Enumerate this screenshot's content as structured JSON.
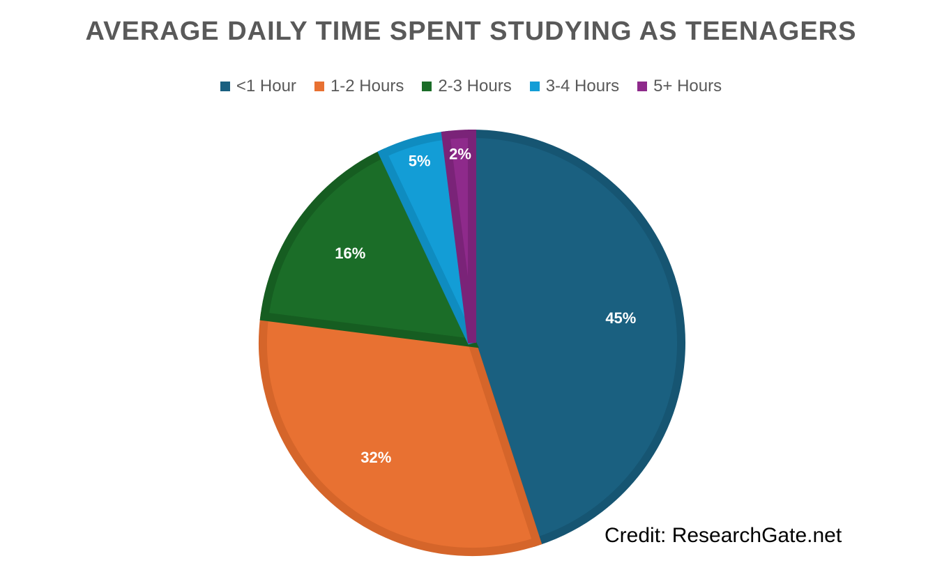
{
  "chart_data": {
    "type": "pie",
    "title": "AVERAGE DAILY TIME SPENT STUDYING AS TEENAGERS",
    "legend_position": "top",
    "slices": [
      {
        "name": "<1 Hour",
        "value": 45,
        "label": "45%",
        "color": "#1a6080",
        "stroke": "#165572"
      },
      {
        "name": "1-2 Hours",
        "value": 32,
        "label": "32%",
        "color": "#e87132",
        "stroke": "#d5652a"
      },
      {
        "name": "2-3 Hours",
        "value": 16,
        "label": "16%",
        "color": "#1b6d28",
        "stroke": "#165d21"
      },
      {
        "name": "3-4 Hours",
        "value": 5,
        "label": "5%",
        "color": "#139dd6",
        "stroke": "#0f8cc0"
      },
      {
        "name": "5+ Hours",
        "value": 2,
        "label": "2%",
        "color": "#8e2a8b",
        "stroke": "#7a2378"
      }
    ]
  },
  "credit": "Credit: ResearchGate.net"
}
